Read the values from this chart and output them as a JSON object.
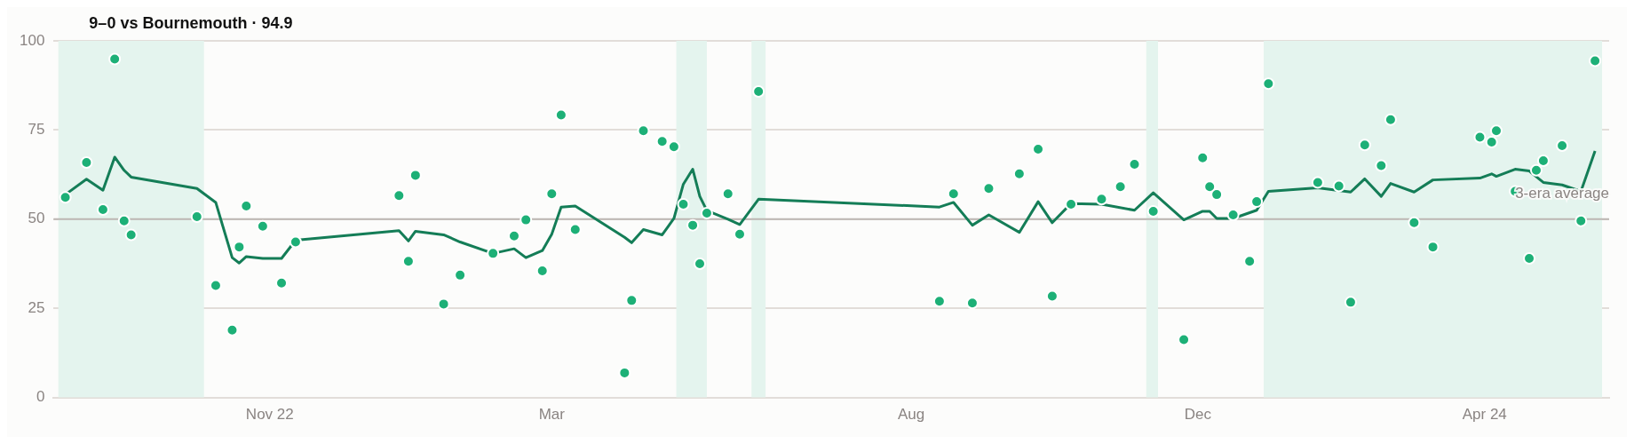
{
  "chart_data": {
    "type": "scatter",
    "title": "9–0 vs Bournemouth · 94.9",
    "xlim": [
      "2022-08-01",
      "2024-05-24"
    ],
    "xticks": [
      {
        "value": "2022-11-01",
        "label": "Nov 22"
      },
      {
        "value": "2023-03-01",
        "label": "Mar"
      },
      {
        "value": "2023-08-01",
        "label": "Aug"
      },
      {
        "value": "2023-12-01",
        "label": "Dec"
      },
      {
        "value": "2024-04-01",
        "label": "Apr 24"
      }
    ],
    "ylim": [
      0,
      100
    ],
    "yticks": [
      0,
      25,
      50,
      75,
      100
    ],
    "grid": "y",
    "legend": false,
    "marker": "circle",
    "ref_lines": [
      {
        "axis": "y",
        "value": 50,
        "label": "3-era average",
        "color": "#bdb7b3"
      }
    ],
    "bands": [
      {
        "axis": "x",
        "from": "2022-08-03",
        "to": "2022-10-04",
        "color": "#e4f4ee"
      },
      {
        "axis": "x",
        "from": "2023-04-23",
        "to": "2023-05-06",
        "color": "#e4f4ee"
      },
      {
        "axis": "x",
        "from": "2023-05-25",
        "to": "2023-05-31",
        "color": "#e4f4ee"
      },
      {
        "axis": "x",
        "from": "2023-11-09",
        "to": "2023-11-14",
        "color": "#e4f4ee"
      },
      {
        "axis": "x",
        "from": "2023-12-29",
        "to": "2024-05-21",
        "color": "#e4f4ee"
      }
    ],
    "series": [
      {
        "color": "#1db077",
        "x": [
          "2022-08-06",
          "2022-08-15",
          "2022-08-22",
          "2022-08-27",
          "2022-08-31",
          "2022-09-03",
          "2022-10-01",
          "2022-10-09",
          "2022-10-16",
          "2022-10-19",
          "2022-10-22",
          "2022-10-29",
          "2022-11-06",
          "2022-11-12",
          "2022-12-26",
          "2022-12-30",
          "2023-01-02",
          "2023-01-14",
          "2023-01-21",
          "2023-02-04",
          "2023-02-13",
          "2023-02-18",
          "2023-02-25",
          "2023-03-01",
          "2023-03-05",
          "2023-03-11",
          "2023-04-01",
          "2023-04-04",
          "2023-04-09",
          "2023-04-17",
          "2023-04-22",
          "2023-04-26",
          "2023-04-30",
          "2023-05-03",
          "2023-05-06",
          "2023-05-15",
          "2023-05-20",
          "2023-05-28",
          "2023-08-13",
          "2023-08-19",
          "2023-08-27",
          "2023-09-03",
          "2023-09-16",
          "2023-09-24",
          "2023-09-30",
          "2023-10-08",
          "2023-10-21",
          "2023-10-29",
          "2023-11-04",
          "2023-11-12",
          "2023-11-25",
          "2023-12-03",
          "2023-12-06",
          "2023-12-09",
          "2023-12-16",
          "2023-12-23",
          "2023-12-26",
          "2023-12-31",
          "2024-01-21",
          "2024-01-30",
          "2024-02-04",
          "2024-02-10",
          "2024-02-17",
          "2024-02-21",
          "2024-03-02",
          "2024-03-10",
          "2024-03-30",
          "2024-04-04",
          "2024-04-06",
          "2024-04-14",
          "2024-04-20",
          "2024-04-23",
          "2024-04-26",
          "2024-05-04",
          "2024-05-12",
          "2024-05-18"
        ],
        "values": [
          56.1,
          65.9,
          52.7,
          94.9,
          49.5,
          45.6,
          50.7,
          31.4,
          18.9,
          42.2,
          53.7,
          48.0,
          32.1,
          43.6,
          56.6,
          38.2,
          62.3,
          26.2,
          34.3,
          40.4,
          45.3,
          49.8,
          35.5,
          57.1,
          79.2,
          47.1,
          6.9,
          27.2,
          74.8,
          71.8,
          70.3,
          54.2,
          48.3,
          37.5,
          51.7,
          57.1,
          45.8,
          85.8,
          27.0,
          57.1,
          26.5,
          58.6,
          62.7,
          69.6,
          28.4,
          54.2,
          55.6,
          59.1,
          65.4,
          52.2,
          16.2,
          67.2,
          59.1,
          56.9,
          51.2,
          38.2,
          54.9,
          88.0,
          60.3,
          59.3,
          26.7,
          70.8,
          65.0,
          77.9,
          49.0,
          42.2,
          73.0,
          71.6,
          74.8,
          57.8,
          39.0,
          63.7,
          66.4,
          70.6,
          49.5,
          94.4
        ]
      },
      {
        "type": "line",
        "color": "#147d57",
        "marker": "none",
        "x": [
          "2022-08-06",
          "2022-08-15",
          "2022-08-22",
          "2022-08-27",
          "2022-08-31",
          "2022-09-03",
          "2022-10-01",
          "2022-10-09",
          "2022-10-16",
          "2022-10-19",
          "2022-10-22",
          "2022-10-29",
          "2022-11-06",
          "2022-11-12",
          "2022-12-26",
          "2022-12-30",
          "2023-01-02",
          "2023-01-14",
          "2023-01-21",
          "2023-02-04",
          "2023-02-13",
          "2023-02-18",
          "2023-02-25",
          "2023-03-01",
          "2023-03-05",
          "2023-03-11",
          "2023-04-01",
          "2023-04-04",
          "2023-04-09",
          "2023-04-17",
          "2023-04-22",
          "2023-04-26",
          "2023-04-30",
          "2023-05-03",
          "2023-05-06",
          "2023-05-15",
          "2023-05-20",
          "2023-05-28",
          "2023-08-13",
          "2023-08-19",
          "2023-08-27",
          "2023-09-03",
          "2023-09-16",
          "2023-09-24",
          "2023-09-30",
          "2023-10-08",
          "2023-10-21",
          "2023-11-04",
          "2023-11-12",
          "2023-11-25",
          "2023-12-03",
          "2023-12-06",
          "2023-12-09",
          "2023-12-16",
          "2023-12-26",
          "2023-12-31",
          "2024-01-21",
          "2024-02-04",
          "2024-02-10",
          "2024-02-17",
          "2024-02-21",
          "2024-03-02",
          "2024-03-10",
          "2024-03-30",
          "2024-04-04",
          "2024-04-06",
          "2024-04-14",
          "2024-04-20",
          "2024-04-26",
          "2024-05-04",
          "2024-05-12",
          "2024-05-18"
        ],
        "values": [
          56.9,
          61.2,
          58.1,
          67.4,
          63.7,
          61.8,
          58.6,
          54.7,
          39.2,
          37.7,
          39.5,
          39.0,
          39.0,
          44.1,
          46.8,
          43.9,
          46.6,
          45.6,
          43.6,
          40.4,
          41.7,
          39.2,
          41.2,
          45.8,
          53.4,
          53.7,
          44.9,
          43.4,
          47.1,
          45.6,
          50.2,
          59.8,
          64.0,
          56.4,
          52.4,
          50.0,
          48.5,
          55.6,
          53.4,
          54.7,
          48.3,
          51.2,
          46.3,
          54.9,
          49.0,
          54.4,
          54.2,
          52.5,
          57.4,
          49.8,
          52.2,
          52.2,
          50.2,
          50.2,
          52.5,
          57.8,
          58.8,
          57.6,
          61.3,
          56.4,
          60.0,
          57.6,
          61.0,
          61.5,
          62.7,
          62.0,
          64.0,
          63.5,
          60.3,
          59.6,
          57.8,
          69.1
        ]
      }
    ]
  }
}
